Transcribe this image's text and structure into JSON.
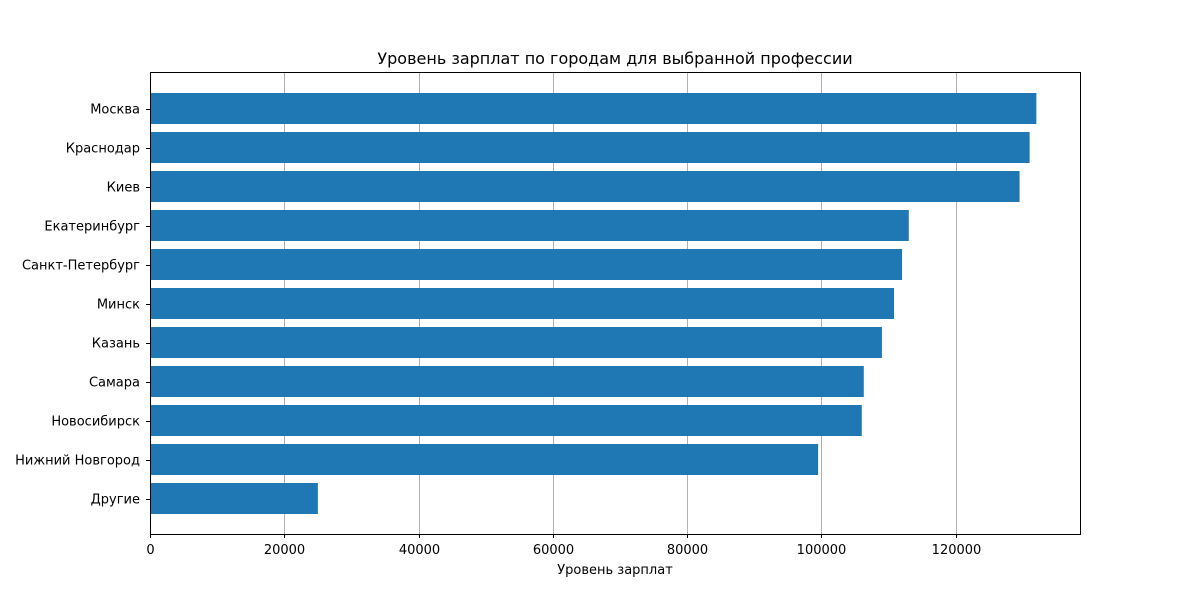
{
  "chart_data": {
    "type": "bar",
    "orientation": "horizontal",
    "title": "Уровень зарплат по городам для выбранной профессии",
    "xlabel": "Уровень зарплат",
    "ylabel": "",
    "categories": [
      "Москва",
      "Краснодар",
      "Киев",
      "Екатеринбург",
      "Санкт-Петербург",
      "Минск",
      "Казань",
      "Самара",
      "Новосибирск",
      "Нижний Новгород",
      "Другие"
    ],
    "values": [
      132000,
      131000,
      129500,
      113000,
      112000,
      110800,
      109000,
      106300,
      106000,
      99500,
      25000
    ],
    "xlim": [
      0,
      138500
    ],
    "xticks": [
      0,
      20000,
      40000,
      60000,
      80000,
      100000,
      120000
    ],
    "xtick_labels": [
      "0",
      "20000",
      "40000",
      "60000",
      "80000",
      "100000",
      "120000"
    ],
    "grid": "x",
    "colors": {
      "bar": "#1f77b4",
      "grid": "#b0b0b0",
      "axis": "#000000"
    }
  }
}
